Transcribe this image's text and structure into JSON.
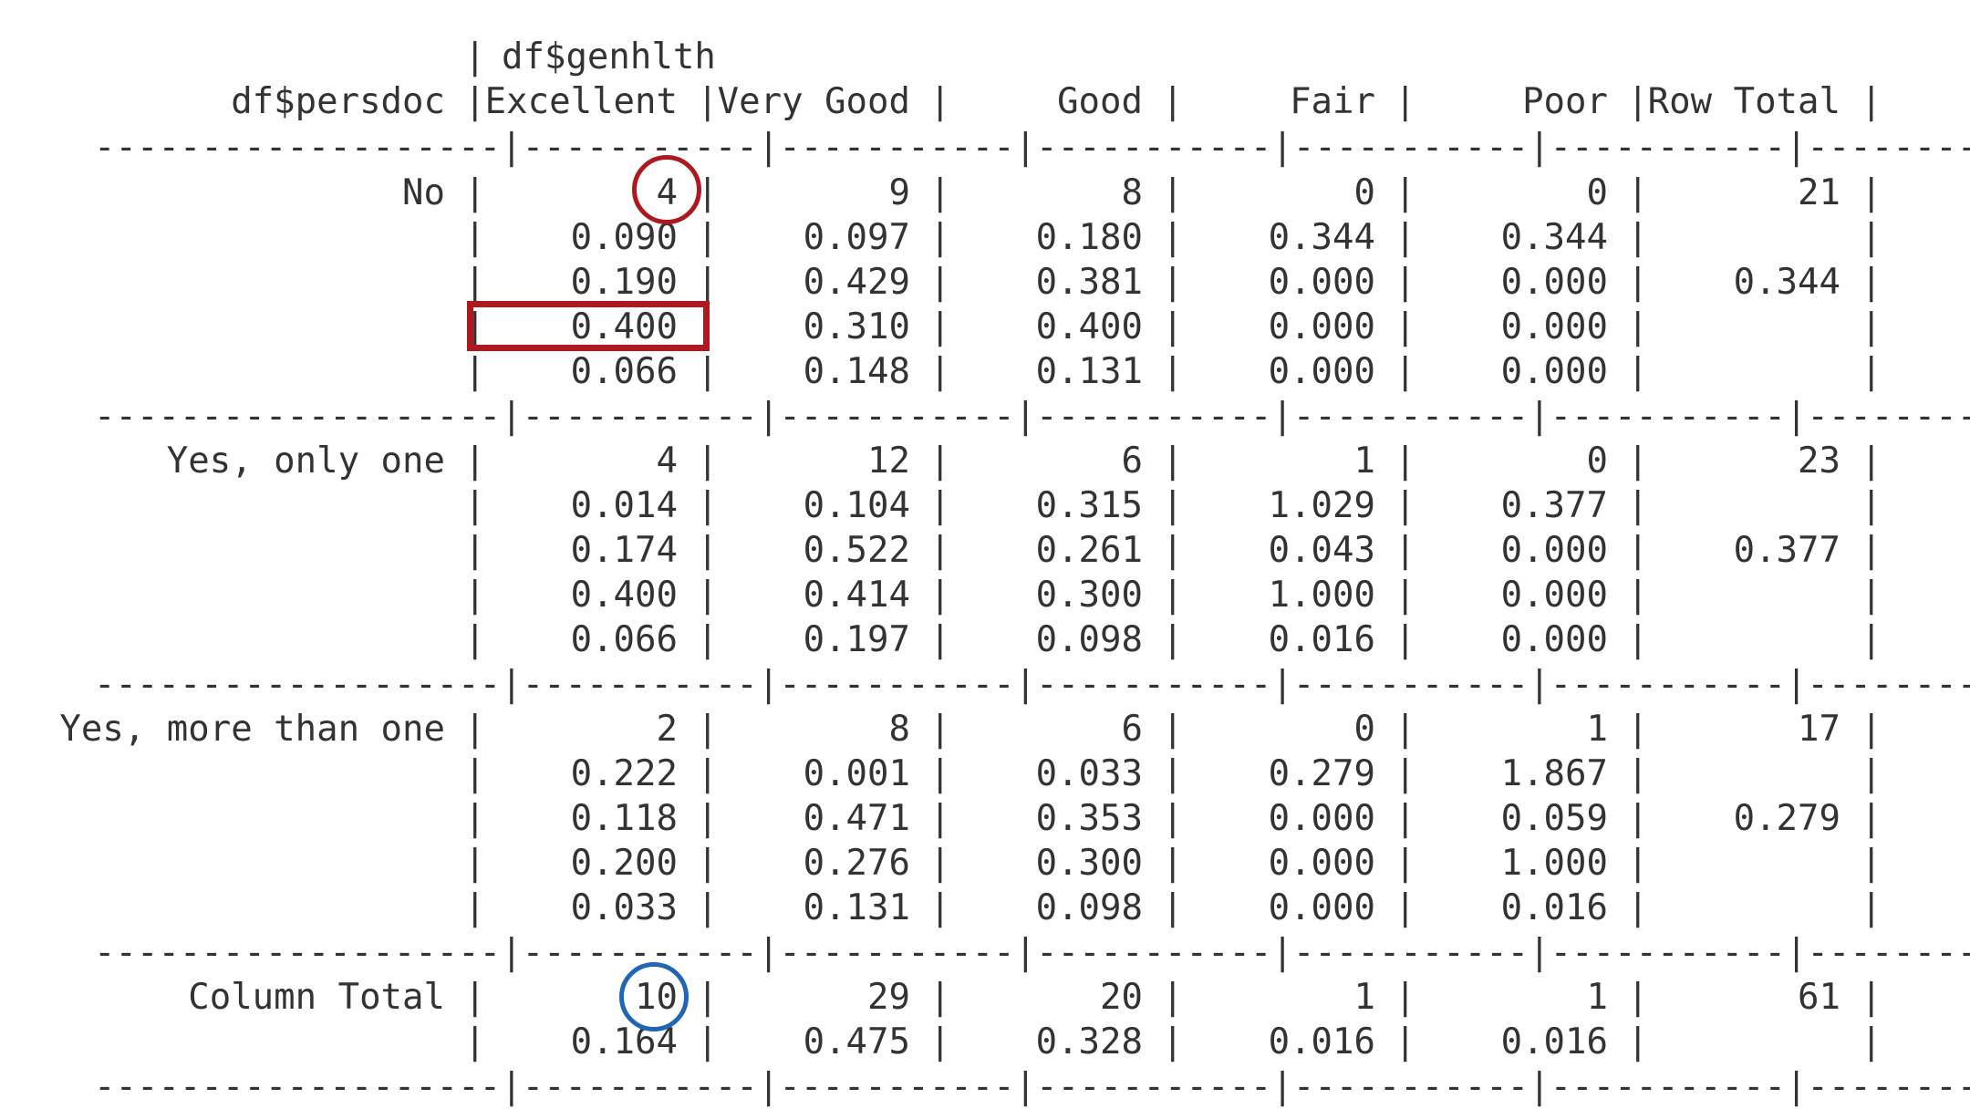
{
  "header": {
    "col_var": "df$genhlth",
    "row_var": "df$persdoc",
    "columns": [
      "Excellent",
      "Very Good",
      "Good",
      "Fair",
      "Poor",
      "Row Total"
    ]
  },
  "rows": [
    {
      "label": "No",
      "cells": [
        [
          "4",
          "0.090",
          "0.190",
          "0.400",
          "0.066"
        ],
        [
          "9",
          "0.097",
          "0.429",
          "0.310",
          "0.148"
        ],
        [
          "8",
          "0.180",
          "0.381",
          "0.400",
          "0.131"
        ],
        [
          "0",
          "0.344",
          "0.000",
          "0.000",
          "0.000"
        ],
        [
          "0",
          "0.344",
          "0.000",
          "0.000",
          "0.000"
        ]
      ],
      "total": [
        "21",
        "",
        "0.344",
        "",
        ""
      ]
    },
    {
      "label": "Yes, only one",
      "cells": [
        [
          "4",
          "0.014",
          "0.174",
          "0.400",
          "0.066"
        ],
        [
          "12",
          "0.104",
          "0.522",
          "0.414",
          "0.197"
        ],
        [
          "6",
          "0.315",
          "0.261",
          "0.300",
          "0.098"
        ],
        [
          "1",
          "1.029",
          "0.043",
          "1.000",
          "0.016"
        ],
        [
          "0",
          "0.377",
          "0.000",
          "0.000",
          "0.000"
        ]
      ],
      "total": [
        "23",
        "",
        "0.377",
        "",
        ""
      ]
    },
    {
      "label": "Yes, more than one",
      "cells": [
        [
          "2",
          "0.222",
          "0.118",
          "0.200",
          "0.033"
        ],
        [
          "8",
          "0.001",
          "0.471",
          "0.276",
          "0.131"
        ],
        [
          "6",
          "0.033",
          "0.353",
          "0.300",
          "0.098"
        ],
        [
          "0",
          "0.279",
          "0.000",
          "0.000",
          "0.000"
        ],
        [
          "1",
          "1.867",
          "0.059",
          "1.000",
          "0.016"
        ]
      ],
      "total": [
        "17",
        "",
        "0.279",
        "",
        ""
      ]
    }
  ],
  "column_total": {
    "label": "Column Total",
    "cells": [
      [
        "10",
        "0.164"
      ],
      [
        "29",
        "0.475"
      ],
      [
        "20",
        "0.328"
      ],
      [
        "1",
        "0.016"
      ],
      [
        "1",
        "0.016"
      ]
    ],
    "total": [
      "61",
      ""
    ]
  },
  "separator": "-------------------|-----------|-----------|-----------|-----------|-----------|-----------|",
  "pipe": "|",
  "annotations": {
    "red_color": "#b01820",
    "blue_color": "#1f66b5",
    "shapes": [
      "red-circle around No/Excellent count",
      "red-rectangle around No/Excellent column proportion",
      "blue-circle around Column Total/Excellent count"
    ]
  }
}
